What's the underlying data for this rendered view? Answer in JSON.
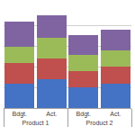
{
  "chart_data": {
    "type": "bar",
    "stacked": true,
    "grid": true,
    "tick_labels": "x",
    "groups": [
      "Product 1",
      "Product 1",
      "Product 2",
      "Product 2"
    ],
    "categories": [
      "Bdgt.",
      "Act.",
      "Bdgt.",
      "Act."
    ],
    "series": [
      {
        "color": "#4472c4",
        "values": [
          120,
          140,
          100,
          120
        ]
      },
      {
        "color": "#c0504d",
        "values": [
          100,
          100,
          80,
          80
        ]
      },
      {
        "color": "#9bbb59",
        "values": [
          80,
          100,
          80,
          80
        ]
      },
      {
        "color": "#8064a2",
        "values": [
          120,
          110,
          95,
          100
        ]
      }
    ],
    "ylim": [
      0,
      500
    ],
    "yticks": [
      0,
      100,
      200,
      300,
      400,
      500
    ]
  }
}
